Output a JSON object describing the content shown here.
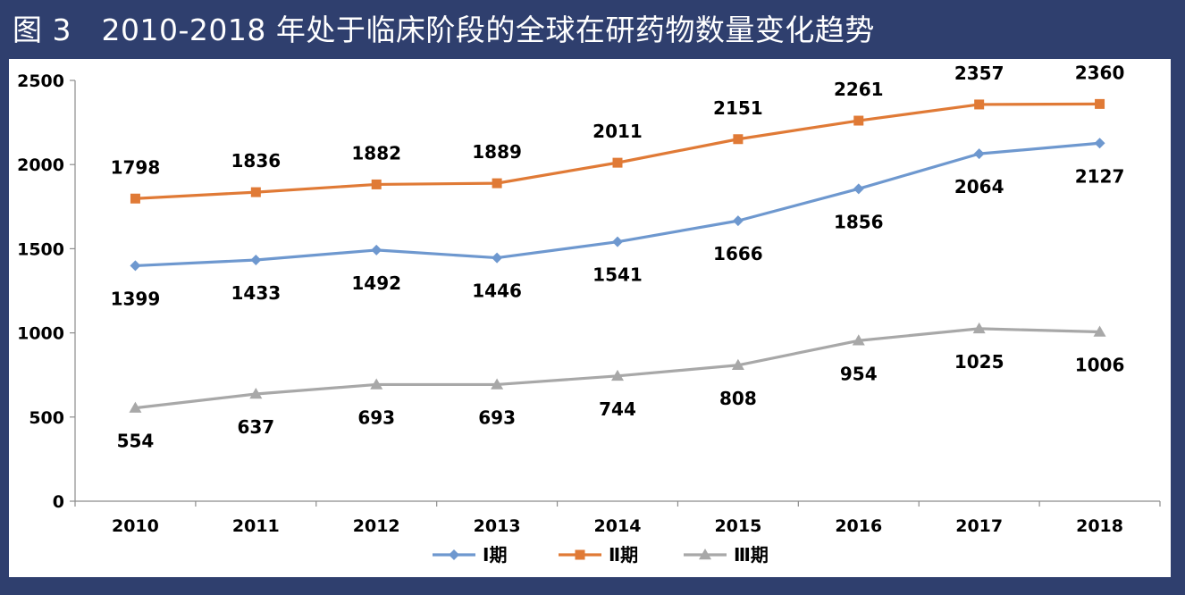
{
  "title": "图 3　2010-2018 年处于临床阶段的全球在研药物数量变化趋势",
  "chart_data": {
    "type": "line",
    "title": "图 3　2010-2018 年处于临床阶段的全球在研药物数量变化趋势",
    "x": [
      "2010",
      "2011",
      "2012",
      "2013",
      "2014",
      "2015",
      "2016",
      "2017",
      "2018"
    ],
    "ylim": [
      0,
      2500
    ],
    "yticks": [
      0,
      500,
      1000,
      1500,
      2000,
      2500
    ],
    "grid": false,
    "legend_position": "bottom",
    "series": [
      {
        "name": "Ⅰ期",
        "color": "#6e98cf",
        "marker": "diamond",
        "label_pos": "below",
        "values": [
          1399,
          1433,
          1492,
          1446,
          1541,
          1666,
          1856,
          2064,
          2127
        ]
      },
      {
        "name": "Ⅱ期",
        "color": "#e07a36",
        "marker": "square",
        "label_pos": "above",
        "values": [
          1798,
          1836,
          1882,
          1889,
          2011,
          2151,
          2261,
          2357,
          2360
        ]
      },
      {
        "name": "Ⅲ期",
        "color": "#a8a8a8",
        "marker": "triangle",
        "label_pos": "below",
        "values": [
          554,
          637,
          693,
          693,
          744,
          808,
          954,
          1025,
          1006
        ]
      }
    ]
  }
}
